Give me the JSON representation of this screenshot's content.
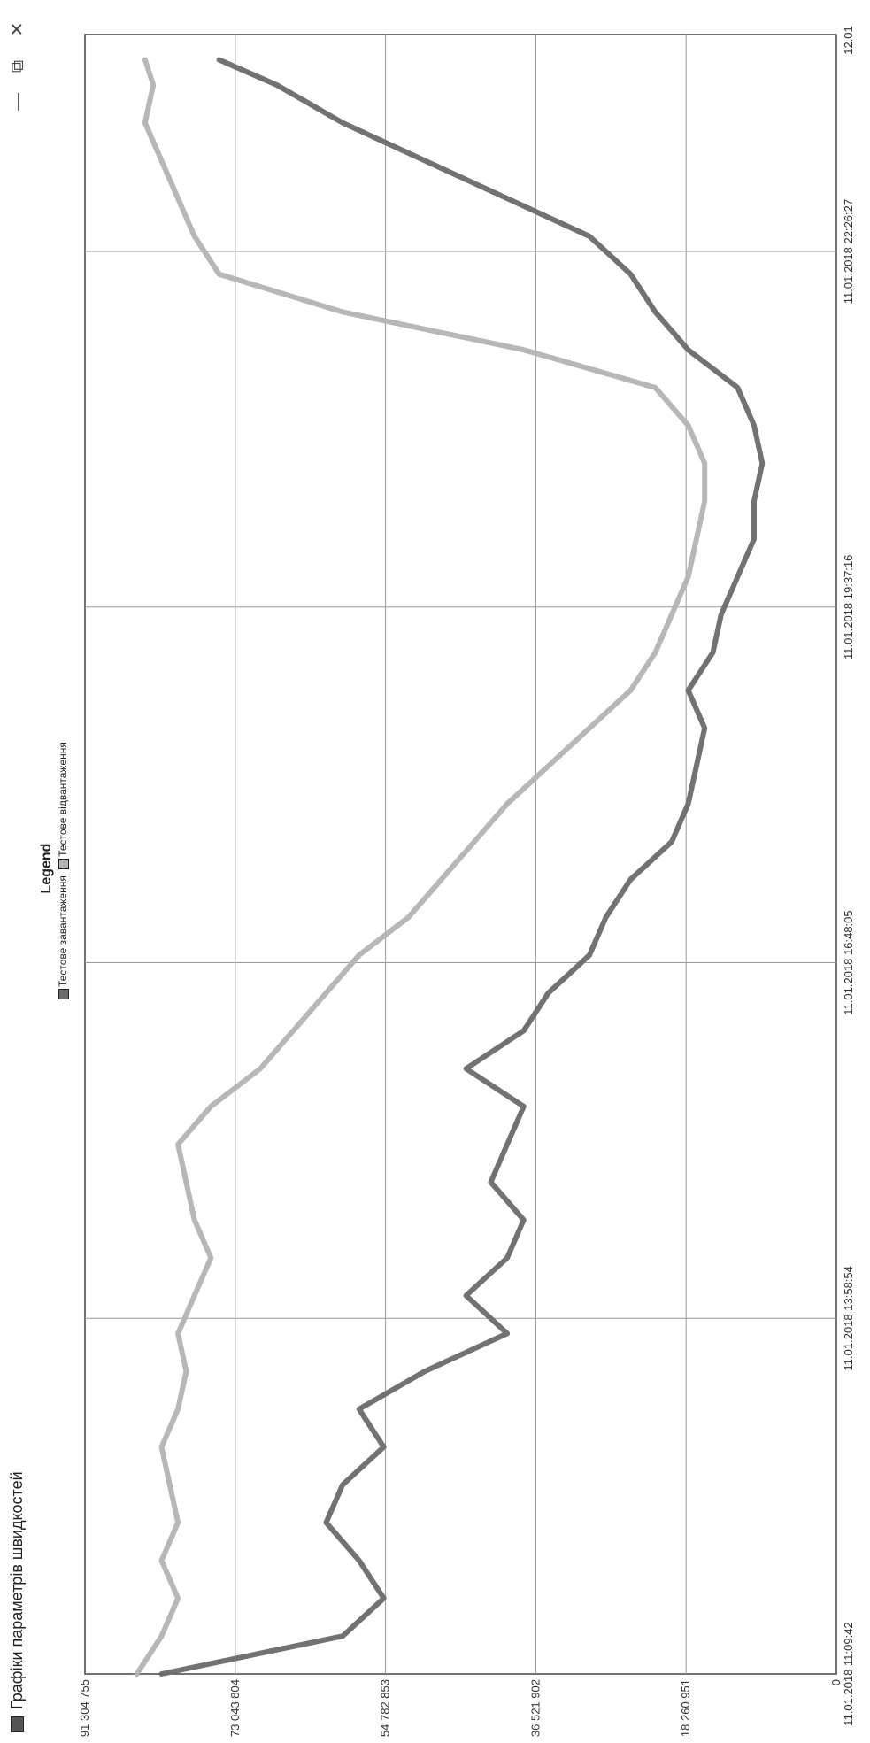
{
  "window": {
    "title": "Графіки параметрів швидкостей",
    "minimize_label": "—",
    "restore_label": "⧉",
    "close_label": "✕",
    "app_icon": "chart-app-icon"
  },
  "legend": {
    "title": "Legend",
    "items": [
      {
        "label": "Тестове завантаження",
        "color": "#6a6a6a"
      },
      {
        "label": "Тестове відвантаження",
        "color": "#b3b3b3"
      }
    ]
  },
  "chart_data": {
    "type": "line",
    "title": "",
    "xlabel": "",
    "ylabel": "",
    "ylim": [
      0,
      91304755
    ],
    "y_ticks": [
      "0",
      "18 260 951",
      "36 521 902",
      "54 782 853",
      "73 043 804",
      "91 304 755"
    ],
    "x_ticks": [
      "11.01.2018 11:09:42",
      "11.01.2018 13:58:54",
      "11.01.2018 16:48:05",
      "11.01.2018 19:37:16",
      "11.01.2018 22:26:27",
      "12.01"
    ],
    "x_tick_hours": [
      0,
      2.82,
      5.64,
      8.46,
      11.28,
      12.84
    ],
    "xlim_hours": [
      0,
      13.0
    ],
    "grid": true,
    "legend_position": "top-center",
    "series": [
      {
        "name": "Тестове завантаження",
        "color": "#6a6a6a",
        "x_hours": [
          0,
          0.3,
          0.6,
          0.9,
          1.2,
          1.5,
          1.8,
          2.1,
          2.4,
          2.7,
          3.0,
          3.3,
          3.6,
          3.9,
          4.2,
          4.5,
          4.8,
          5.1,
          5.4,
          5.7,
          6.0,
          6.3,
          6.6,
          6.9,
          7.2,
          7.5,
          7.8,
          8.1,
          8.4,
          8.7,
          9.0,
          9.3,
          9.6,
          9.9,
          10.2,
          10.5,
          10.8,
          11.1,
          11.4,
          11.7,
          12.0,
          12.3,
          12.6,
          12.8
        ],
        "values": [
          82000000,
          60000000,
          55000000,
          58000000,
          62000000,
          60000000,
          55000000,
          58000000,
          50000000,
          40000000,
          45000000,
          40000000,
          38000000,
          42000000,
          40000000,
          38000000,
          45000000,
          38000000,
          35000000,
          30000000,
          28000000,
          25000000,
          20000000,
          18000000,
          17000000,
          16000000,
          18000000,
          15000000,
          14000000,
          12000000,
          10000000,
          10000000,
          9000000,
          10000000,
          12000000,
          18000000,
          22000000,
          25000000,
          30000000,
          40000000,
          50000000,
          60000000,
          68000000,
          75000000
        ]
      },
      {
        "name": "Тестове відвантаження",
        "color": "#b3b3b3",
        "x_hours": [
          0,
          0.3,
          0.6,
          0.9,
          1.2,
          1.5,
          1.8,
          2.1,
          2.4,
          2.7,
          3.0,
          3.3,
          3.6,
          3.9,
          4.2,
          4.5,
          4.8,
          5.1,
          5.4,
          5.7,
          6.0,
          6.3,
          6.6,
          6.9,
          7.2,
          7.5,
          7.8,
          8.1,
          8.4,
          8.7,
          9.0,
          9.3,
          9.6,
          9.9,
          10.2,
          10.5,
          10.8,
          11.1,
          11.4,
          11.7,
          12.0,
          12.3,
          12.6,
          12.8
        ],
        "values": [
          85000000,
          82000000,
          80000000,
          82000000,
          80000000,
          81000000,
          82000000,
          80000000,
          79000000,
          80000000,
          78000000,
          76000000,
          78000000,
          79000000,
          80000000,
          76000000,
          70000000,
          66000000,
          62000000,
          58000000,
          52000000,
          48000000,
          44000000,
          40000000,
          35000000,
          30000000,
          25000000,
          22000000,
          20000000,
          18000000,
          17000000,
          16000000,
          16000000,
          18000000,
          22000000,
          38000000,
          60000000,
          75000000,
          78000000,
          80000000,
          82000000,
          84000000,
          83000000,
          84000000
        ]
      }
    ]
  }
}
